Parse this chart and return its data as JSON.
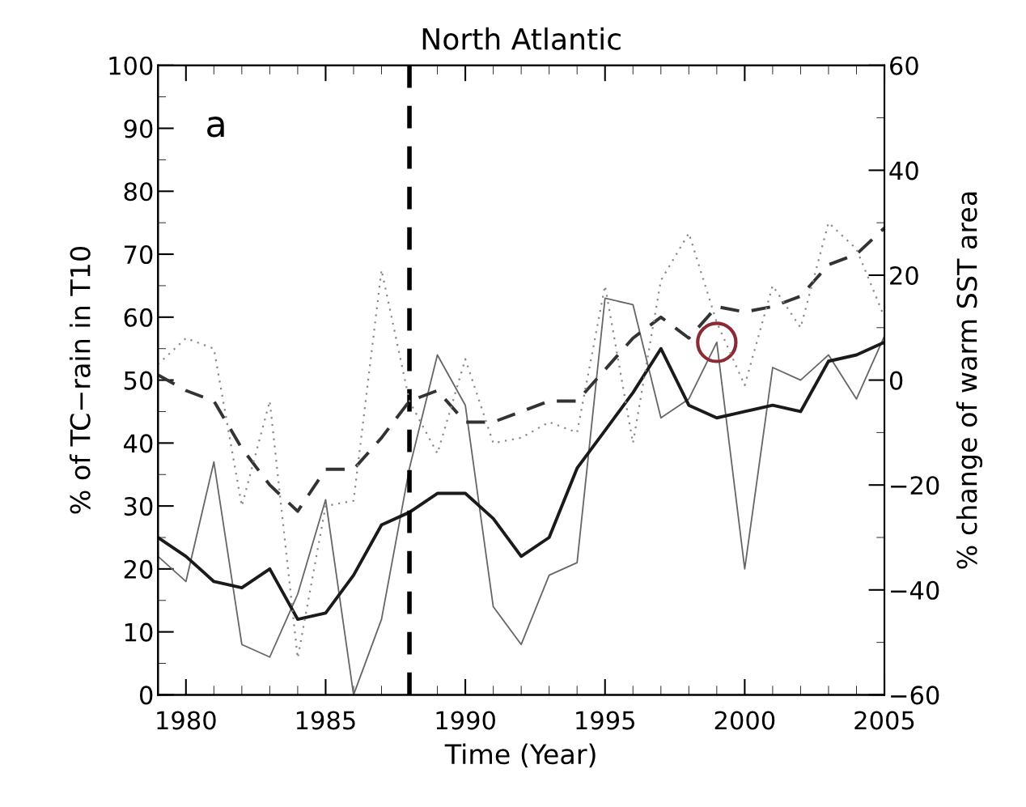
{
  "chart_data": {
    "type": "line",
    "title": "North Atlantic",
    "xlabel": "Time (Year)",
    "ylabel": "% of TC−rain in T10",
    "y2label": "% change of warm SST area",
    "x": [
      1979,
      1980,
      1981,
      1982,
      1983,
      1984,
      1985,
      1986,
      1987,
      1988,
      1989,
      1990,
      1991,
      1992,
      1993,
      1994,
      1995,
      1996,
      1997,
      1998,
      1999,
      2000,
      2001,
      2002,
      2003,
      2004,
      2005
    ],
    "series": [
      {
        "color": "#666666",
        "line_style": "solid",
        "values": [
          22,
          18,
          37,
          8,
          6,
          16,
          31,
          0,
          12,
          36,
          54,
          46,
          14,
          8,
          19,
          21,
          63,
          62,
          44,
          47,
          56,
          20,
          52,
          50,
          54,
          47,
          57
        ]
      },
      {
        "color": "#1a1a1a",
        "line_style": "solid",
        "values": [
          25,
          22,
          18,
          17,
          20,
          12,
          13,
          19,
          27,
          29,
          32,
          32,
          28,
          22,
          25,
          36,
          42,
          48,
          55,
          46,
          44,
          45,
          46,
          45,
          53,
          54,
          56
        ]
      },
      {
        "color": "#333333",
        "line_style": "dashed",
        "axis": "y2",
        "values": [
          1,
          -2,
          -4,
          -13,
          -20,
          -25,
          -17,
          -17,
          -11,
          -4,
          -2,
          -8,
          -8,
          -6,
          -4,
          -4,
          2,
          8,
          12,
          8,
          14,
          13,
          14,
          16,
          22,
          24,
          29
        ]
      },
      {
        "color": "#888888",
        "line_style": "dotted",
        "axis": "y2",
        "values": [
          3,
          8,
          6,
          -24,
          -4,
          -53,
          -24,
          -23,
          21,
          -4,
          -14,
          4,
          -12,
          -11,
          -8,
          -10,
          18,
          -12,
          19,
          28,
          11,
          -1,
          18,
          10,
          30,
          25,
          12
        ]
      },
      {
        "type": "scatter",
        "color": "#8b2a35",
        "x": [
          1999
        ],
        "values": [
          56
        ]
      }
    ],
    "annotations": [
      "a"
    ],
    "ref_lines": [
      {
        "axis": "x",
        "value": 1988,
        "color": "#000000",
        "line_style": "dashed"
      }
    ],
    "xlim": [
      1979,
      2005
    ],
    "xticks": [
      1980,
      1985,
      1990,
      1995,
      2000,
      2005
    ],
    "ylim": [
      0,
      100
    ],
    "yticks": [
      0,
      10,
      20,
      30,
      40,
      50,
      60,
      70,
      80,
      90,
      100
    ],
    "y2lim": [
      -60,
      60
    ],
    "y2ticks": [
      {
        "value": -60,
        "label": "−60"
      },
      {
        "value": -40,
        "label": "−40"
      },
      {
        "value": -20,
        "label": "−20"
      },
      0,
      20,
      40,
      60
    ],
    "grid": false,
    "legend": false
  }
}
